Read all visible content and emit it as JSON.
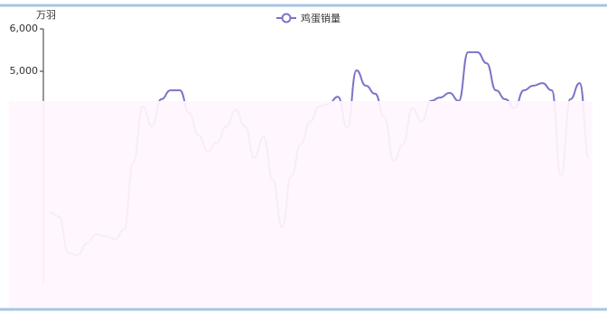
{
  "chart_data": {
    "type": "line",
    "y_label": "万羽",
    "series": [
      {
        "name": "鸡蛋销量",
        "color": "#7b74c8",
        "values": [
          1680,
          1570,
          720,
          660,
          940,
          1150,
          1110,
          1040,
          1260,
          2850,
          4170,
          3700,
          4340,
          4550,
          4550,
          4020,
          3490,
          3110,
          3320,
          3700,
          4090,
          3700,
          2960,
          3450,
          2430,
          1320,
          2530,
          3280,
          3810,
          4170,
          4230,
          4400,
          3660,
          5020,
          4660,
          4470,
          3920,
          2890,
          3280,
          4130,
          3810,
          4300,
          4380,
          4490,
          4300,
          5450,
          5450,
          5190,
          4550,
          4340,
          4130,
          4550,
          4660,
          4720,
          4550,
          2530,
          4340,
          4720,
          2960
        ]
      }
    ],
    "ylim": [
      0,
      6000
    ],
    "yticks": [
      {
        "value": 5000,
        "label": "5,000"
      },
      {
        "value": 6000,
        "label": "6,000"
      }
    ]
  }
}
